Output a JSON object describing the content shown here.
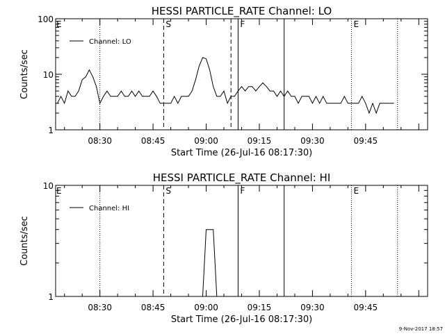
{
  "footer": {
    "date_stamp": "9-Nov-2017 18:57"
  },
  "chart_data": [
    {
      "type": "line",
      "title": "HESSI PARTICLE_RATE Channel: LO",
      "xlabel": "Start Time (26-Jul-16 08:17:30)",
      "ylabel": "Counts/sec",
      "y_scale": "log",
      "ylim": [
        1,
        100
      ],
      "y_ticks": [
        {
          "v": 1,
          "label": "1"
        },
        {
          "v": 10,
          "label": "10"
        },
        {
          "v": 100,
          "label": "100"
        }
      ],
      "xlim": [
        "08:17:30",
        "10:02:30"
      ],
      "x_ticks": [
        "08:30",
        "08:45",
        "09:00",
        "09:15",
        "09:30",
        "09:45"
      ],
      "legend": {
        "position": "top-left",
        "entries": [
          "Channel: LO"
        ]
      },
      "markers": [
        {
          "time": "08:30",
          "style": "dotted",
          "label": ""
        },
        {
          "time": "08:48",
          "style": "dashed",
          "label": "S"
        },
        {
          "time": "09:07",
          "style": "dashed",
          "label": ""
        },
        {
          "time": "09:09",
          "style": "solid",
          "label": "F"
        },
        {
          "time": "09:22",
          "style": "solid",
          "label": ""
        },
        {
          "time": "09:41",
          "style": "dotted",
          "label": "E"
        },
        {
          "time": "09:54",
          "style": "dotted",
          "label": ""
        }
      ],
      "corner_label": "E",
      "series": [
        {
          "name": "Channel: LO",
          "x": [
            "08:18",
            "08:19",
            "08:20",
            "08:21",
            "08:22",
            "08:23",
            "08:24",
            "08:25",
            "08:26",
            "08:27",
            "08:28",
            "08:29",
            "08:30",
            "08:31",
            "08:32",
            "08:33",
            "08:34",
            "08:35",
            "08:36",
            "08:37",
            "08:38",
            "08:39",
            "08:40",
            "08:41",
            "08:42",
            "08:43",
            "08:44",
            "08:45",
            "08:46",
            "08:47",
            "08:48",
            "08:49",
            "08:50",
            "08:51",
            "08:52",
            "08:53",
            "08:54",
            "08:55",
            "08:56",
            "08:57",
            "08:58",
            "08:59",
            "09:00",
            "09:01",
            "09:02",
            "09:03",
            "09:04",
            "09:05",
            "09:06",
            "09:07",
            "09:08",
            "09:09",
            "09:10",
            "09:11",
            "09:12",
            "09:13",
            "09:14",
            "09:15",
            "09:16",
            "09:17",
            "09:18",
            "09:19",
            "09:20",
            "09:21",
            "09:22",
            "09:23",
            "09:24",
            "09:25",
            "09:26",
            "09:27",
            "09:28",
            "09:29",
            "09:30",
            "09:31",
            "09:32",
            "09:33",
            "09:34",
            "09:35",
            "09:36",
            "09:37",
            "09:38",
            "09:39",
            "09:40",
            "09:41",
            "09:42",
            "09:43",
            "09:44",
            "09:45",
            "09:46",
            "09:47",
            "09:48",
            "09:49",
            "09:50",
            "09:51",
            "09:52",
            "09:53"
          ],
          "values": [
            3,
            4,
            3,
            5,
            4,
            4,
            5,
            8,
            9,
            12,
            9,
            6,
            3,
            4,
            5,
            4,
            4,
            4,
            5,
            4,
            4,
            5,
            4,
            5,
            4,
            4,
            4,
            5,
            4,
            3,
            3,
            3,
            3,
            4,
            3,
            4,
            4,
            4,
            5,
            8,
            14,
            20,
            19,
            12,
            6,
            4,
            4,
            5,
            3,
            4,
            4,
            5,
            6,
            5,
            6,
            6,
            5,
            6,
            7,
            6,
            5,
            5,
            4,
            5,
            4,
            5,
            4,
            4,
            3,
            4,
            4,
            4,
            3,
            4,
            3,
            4,
            3,
            3,
            3,
            3,
            3,
            4,
            3,
            3,
            3,
            3,
            4,
            3,
            2,
            3,
            2,
            3,
            3,
            3,
            3,
            3
          ]
        }
      ]
    },
    {
      "type": "line",
      "title": "HESSI PARTICLE_RATE Channel: HI",
      "xlabel": "Start Time (26-Jul-16 08:17:30)",
      "ylabel": "Counts/sec",
      "y_scale": "log",
      "ylim": [
        1,
        10
      ],
      "y_ticks": [
        {
          "v": 1,
          "label": "1"
        },
        {
          "v": 10,
          "label": "10"
        }
      ],
      "xlim": [
        "08:17:30",
        "10:02:30"
      ],
      "x_ticks": [
        "08:30",
        "08:45",
        "09:00",
        "09:15",
        "09:30",
        "09:45"
      ],
      "legend": {
        "position": "top-left",
        "entries": [
          "Channel: HI"
        ]
      },
      "markers": [
        {
          "time": "08:30",
          "style": "dotted",
          "label": ""
        },
        {
          "time": "08:48",
          "style": "dashed",
          "label": "S"
        },
        {
          "time": "09:09",
          "style": "solid",
          "label": "F"
        },
        {
          "time": "09:22",
          "style": "solid",
          "label": ""
        },
        {
          "time": "09:41",
          "style": "dotted",
          "label": "E"
        },
        {
          "time": "09:54",
          "style": "dotted",
          "label": ""
        }
      ],
      "corner_label": "E",
      "series": [
        {
          "name": "Channel: HI",
          "x": [
            "08:58",
            "08:59",
            "09:00",
            "09:01",
            "09:02",
            "09:03",
            "09:04"
          ],
          "values": [
            1,
            1,
            4,
            4,
            4,
            1,
            1
          ]
        }
      ]
    }
  ]
}
